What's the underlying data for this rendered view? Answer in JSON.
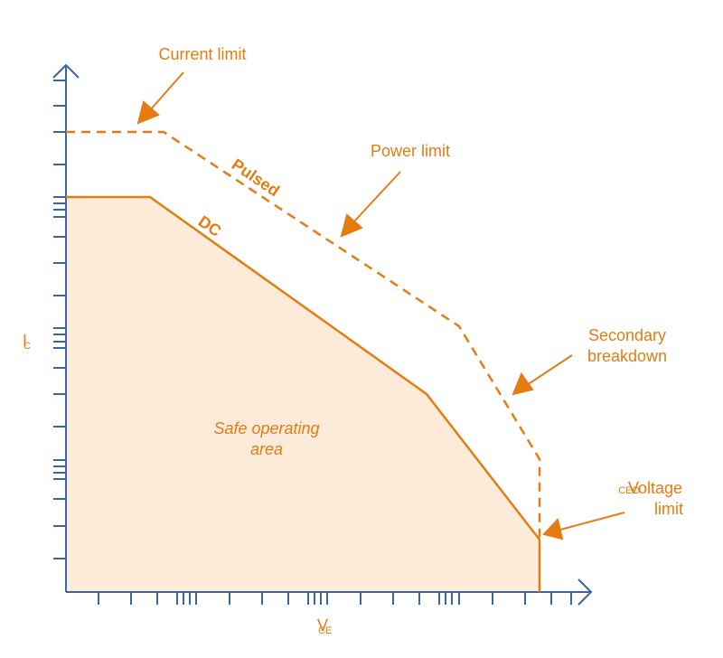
{
  "colors": {
    "axis": "#3a64a8",
    "curve": "#e57c12",
    "fill": "#fdebd9"
  },
  "labels": {
    "current_limit": "Current limit",
    "power_limit": "Power limit",
    "secondary_breakdown_line1": "Secondary",
    "secondary_breakdown_line2": "breakdown",
    "voltage_limit_line1": "Voltage",
    "voltage_limit_line2": "limit",
    "voltage_limit_sub": "CEO",
    "pulsed": "Pulsed",
    "dc": "DC",
    "soa_line1": "Safe operating",
    "soa_line2": "area",
    "y_axis": "I",
    "y_axis_sub": "C",
    "x_axis": "V",
    "x_axis_sub": "CE"
  }
}
